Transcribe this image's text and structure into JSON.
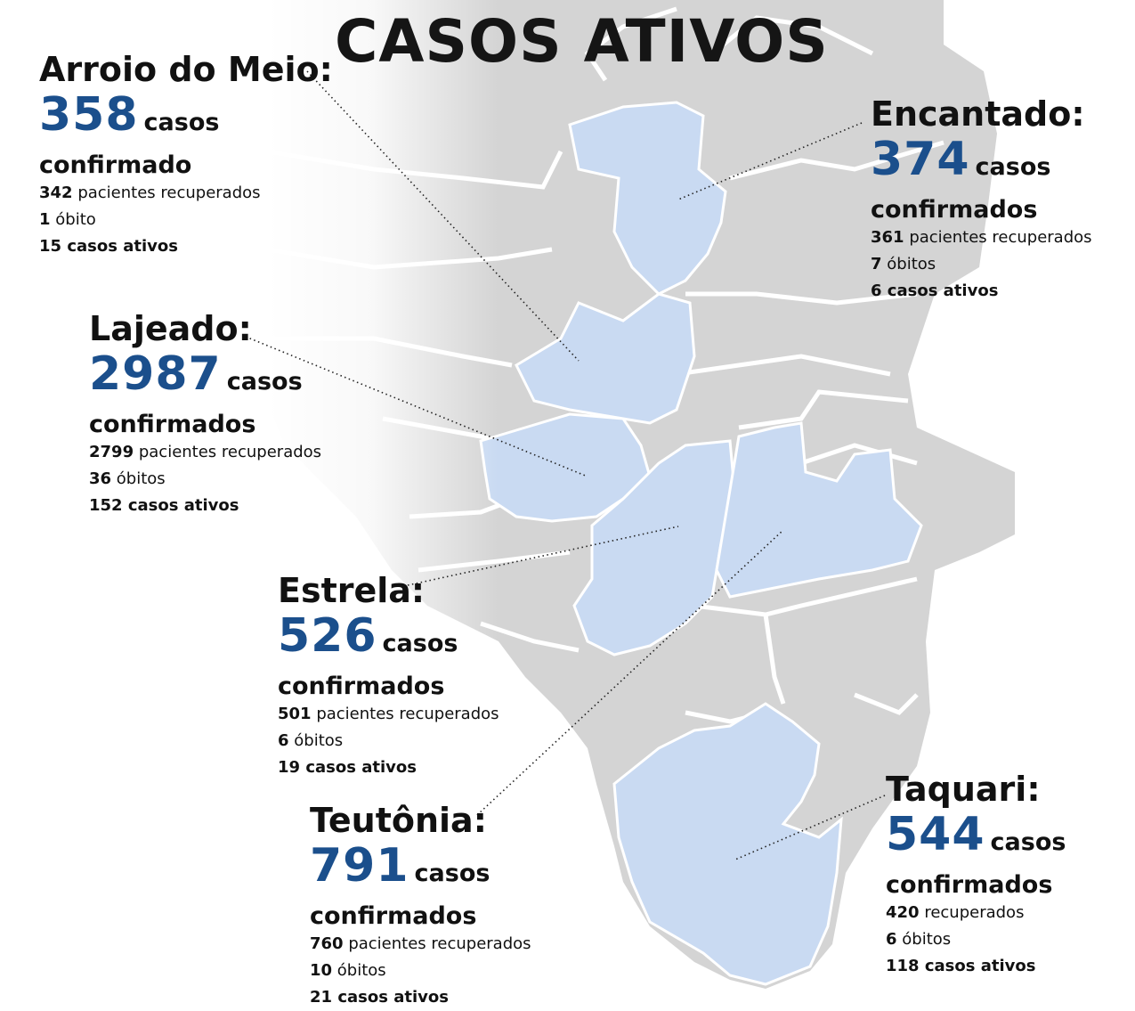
{
  "title": "CASOS ATIVOS",
  "colors": {
    "count": "#1b4f8c",
    "highlight_region": "#c9daf2",
    "other_region": "#d4d4d4",
    "border": "#ffffff"
  },
  "cities": {
    "arroio": {
      "name": "Arroio do Meio:",
      "count": "358",
      "casos": "casos",
      "confirmados": "confirmado",
      "rec_num": "342",
      "rec_label": "pacientes recuperados",
      "obito_num": "1",
      "obito_label": "óbito",
      "ativos": "15 casos ativos"
    },
    "encantado": {
      "name": "Encantado:",
      "count": "374",
      "casos": "casos",
      "confirmados": "confirmados",
      "rec_num": "361",
      "rec_label": "pacientes recuperados",
      "obito_num": "7",
      "obito_label": "óbitos",
      "ativos": "6 casos ativos"
    },
    "lajeado": {
      "name": "Lajeado:",
      "count": "2987",
      "casos": "casos",
      "confirmados": "confirmados",
      "rec_num": "2799",
      "rec_label": "pacientes recuperados",
      "obito_num": "36",
      "obito_label": "óbitos",
      "ativos": "152 casos ativos"
    },
    "estrela": {
      "name": "Estrela:",
      "count": "526",
      "casos": "casos",
      "confirmados": "confirmados",
      "rec_num": "501",
      "rec_label": "pacientes recuperados",
      "obito_num": "6",
      "obito_label": "óbitos",
      "ativos": "19 casos ativos"
    },
    "teutonia": {
      "name": "Teutônia:",
      "count": "791",
      "casos": "casos",
      "confirmados": "confirmados",
      "rec_num": "760",
      "rec_label": "pacientes recuperados",
      "obito_num": "10",
      "obito_label": "óbitos",
      "ativos": "21 casos ativos"
    },
    "taquari": {
      "name": "Taquari:",
      "count": "544",
      "casos": "casos",
      "confirmados": "confirmados",
      "rec_num": "420",
      "rec_label": "recuperados",
      "obito_num": "6",
      "obito_label": "óbitos",
      "ativos": "118 casos ativos"
    }
  }
}
